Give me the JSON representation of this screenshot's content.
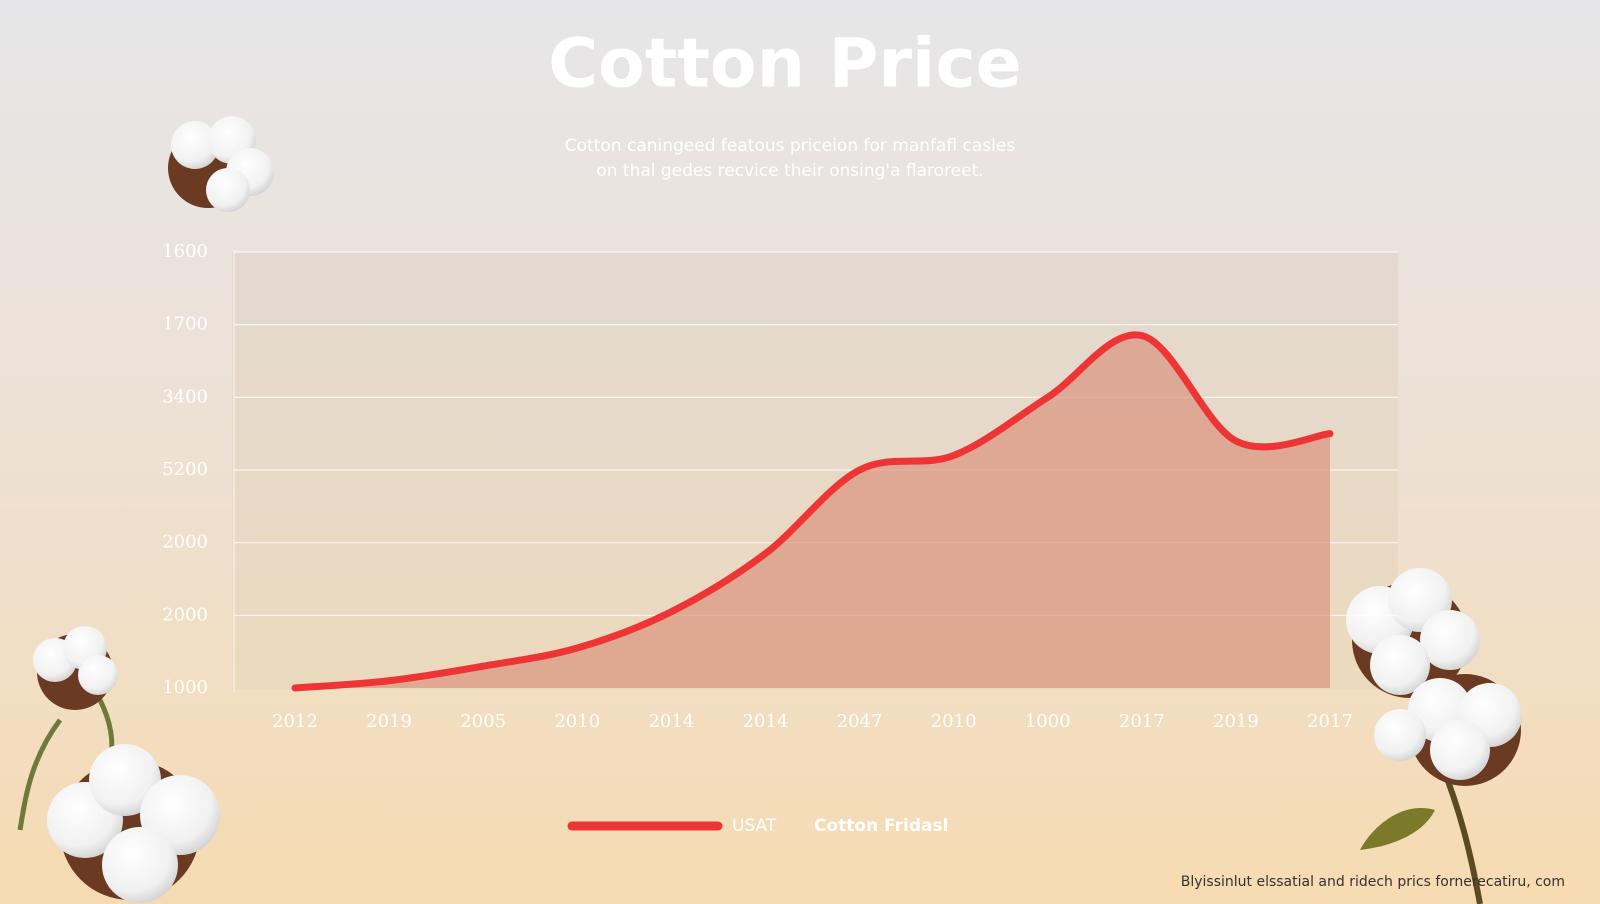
{
  "chart_data": {
    "type": "area",
    "title": "Cotton Price",
    "subtitle": [
      "Cotton caningeed featous priceion for manfafl casles",
      "on thal gedes recvice their onsing'a flaroreet."
    ],
    "categories": [
      "2012",
      "2019",
      "2005",
      "2010",
      "2014",
      "2014",
      "2047",
      "2010",
      "1000",
      "2017",
      "2019",
      "2017"
    ],
    "series": [
      {
        "name": "USAT",
        "color": "#ee3535",
        "values": [
          0,
          0.1,
          0.3,
          0.55,
          1.05,
          1.85,
          3.0,
          3.2,
          4.0,
          4.85,
          3.4,
          3.5
        ]
      }
    ],
    "legend_note": "Cotton Fridasl",
    "ylim": [
      0,
      6
    ],
    "yticks": [
      {
        "value": 0,
        "label": "1000"
      },
      {
        "value": 1,
        "label": "2000"
      },
      {
        "value": 2,
        "label": "2000"
      },
      {
        "value": 3,
        "label": "5200"
      },
      {
        "value": 4,
        "label": "3400"
      },
      {
        "value": 5,
        "label": "1700"
      },
      {
        "value": 6,
        "label": "1600"
      }
    ],
    "grid": true,
    "source": "Blyissinlut elssatial and ridech prics fornerecatiru, com"
  }
}
